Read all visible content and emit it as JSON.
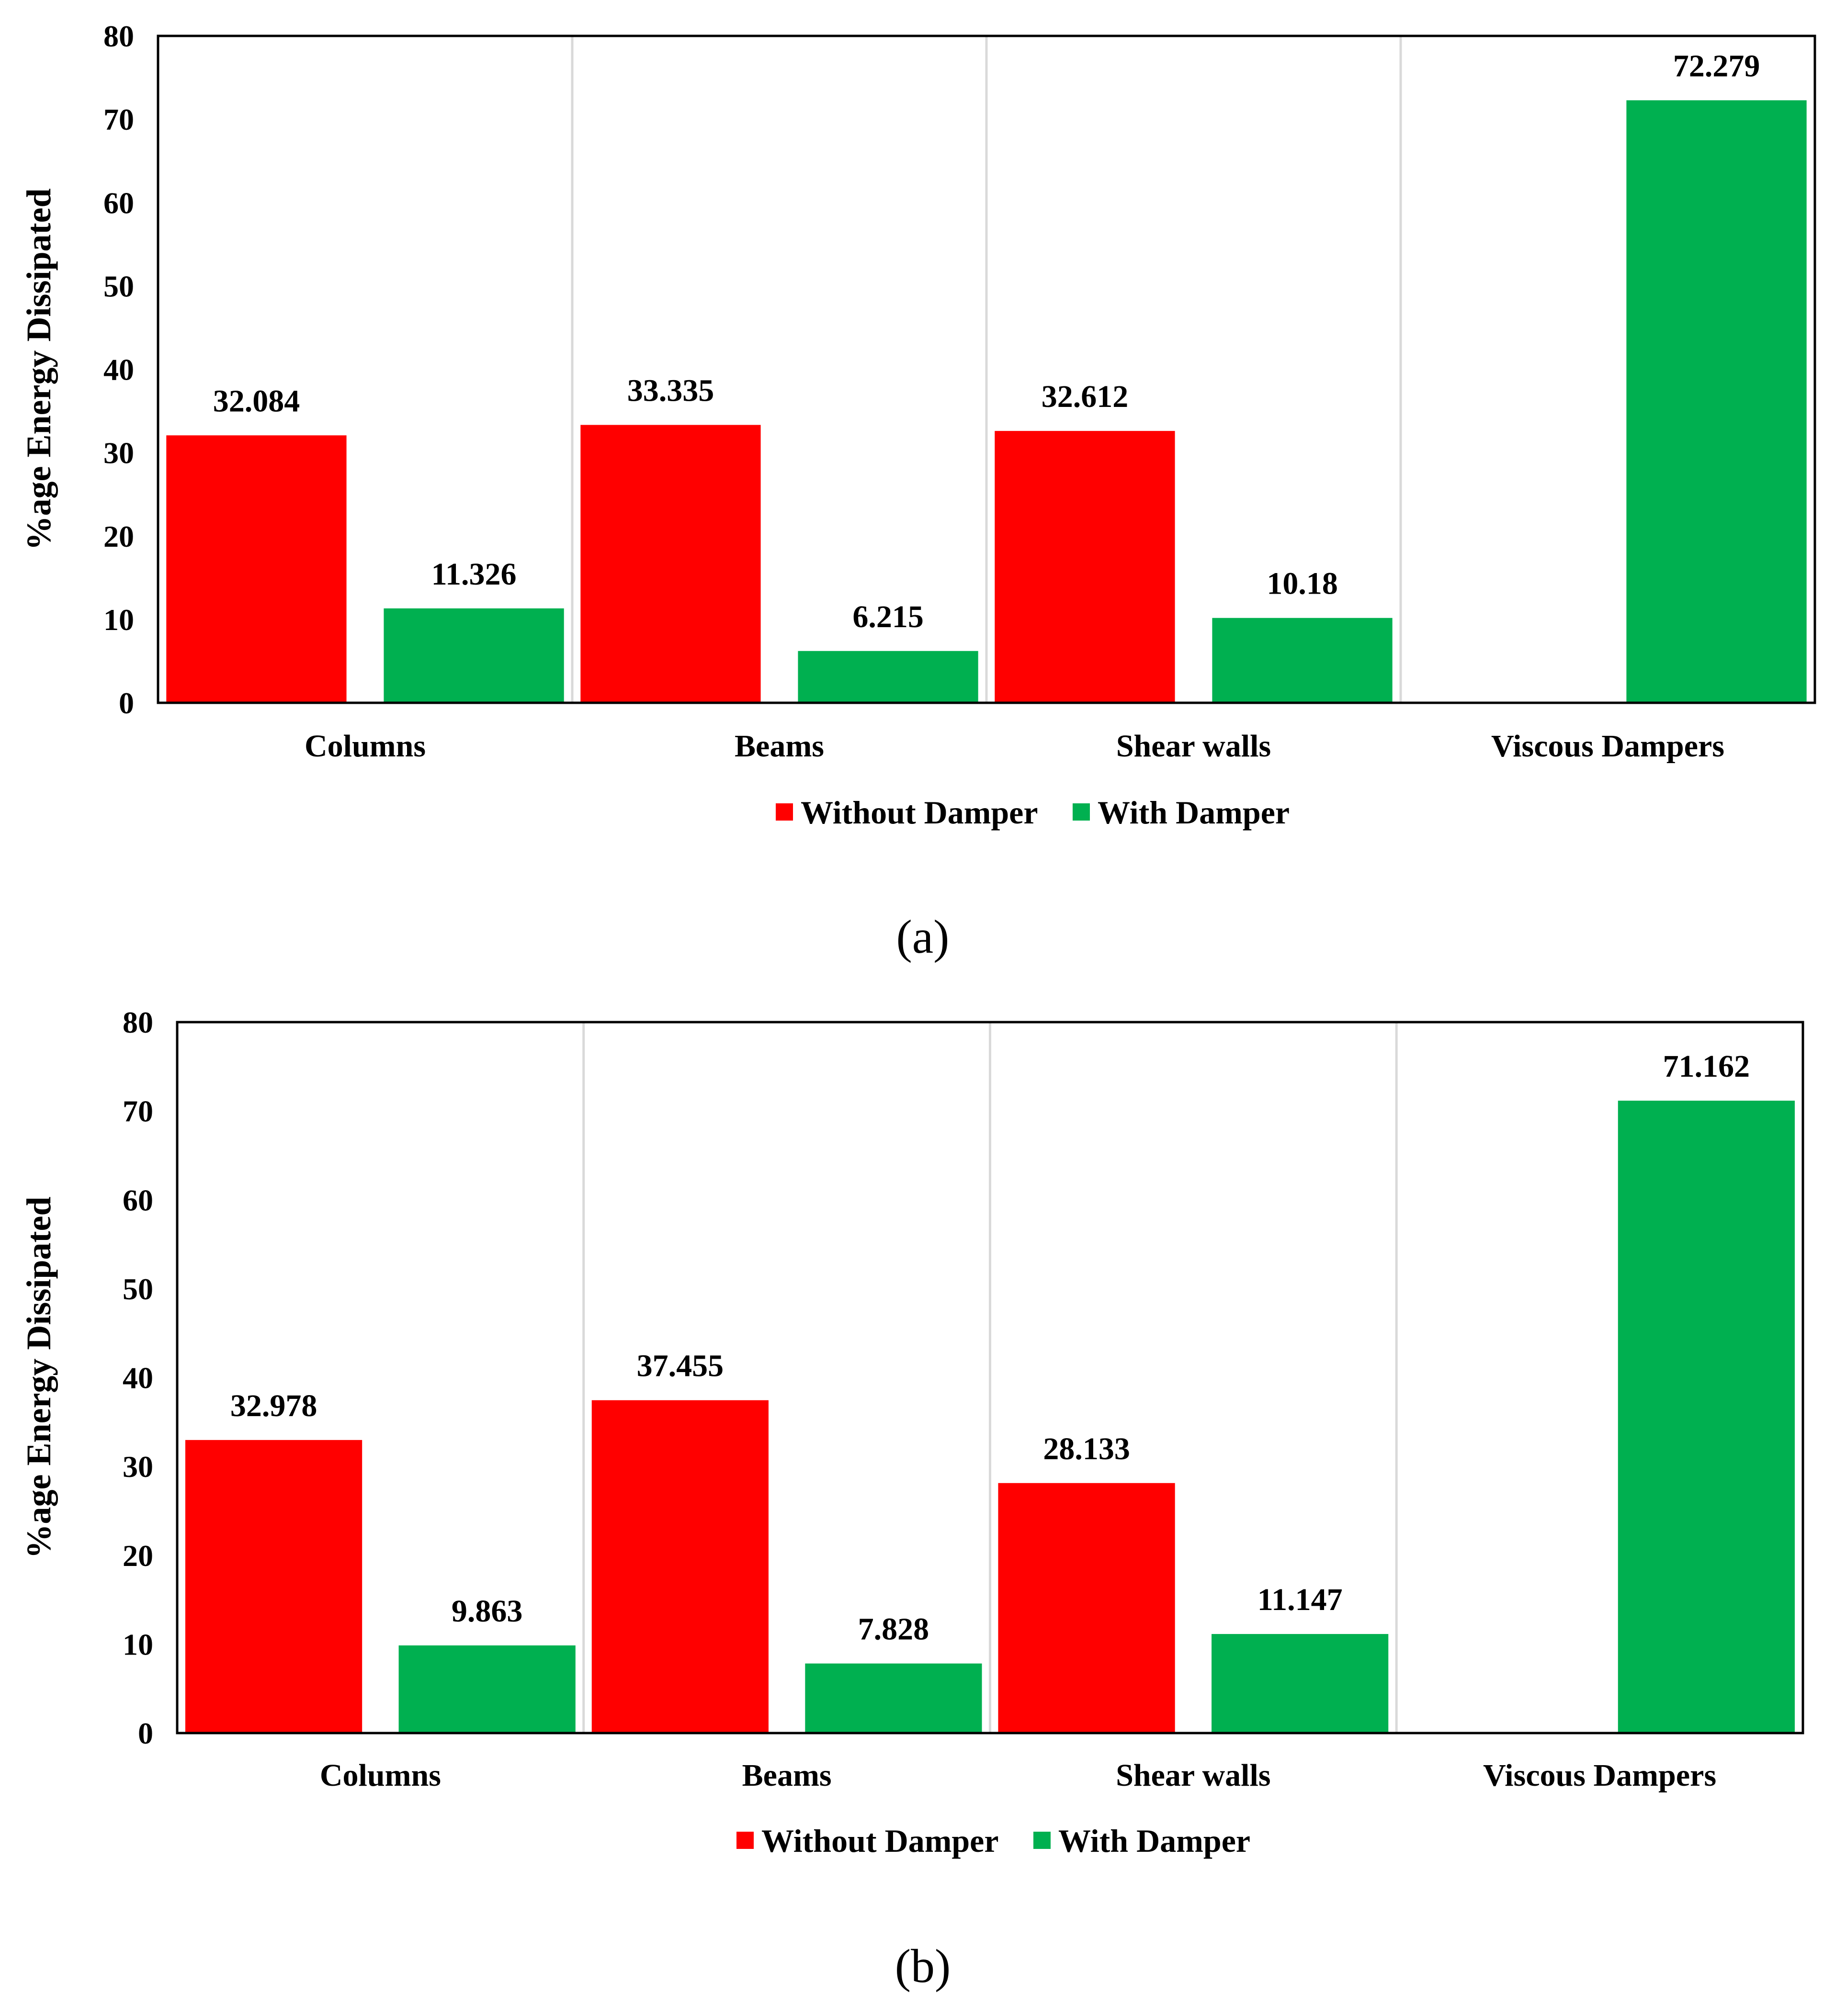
{
  "chart_data": [
    {
      "type": "bar",
      "panel_label": "(a)",
      "categories": [
        "Columns",
        "Beams",
        "Shear walls",
        "Viscous Dampers"
      ],
      "series": [
        {
          "name": "Without Damper",
          "color": "#ff0000",
          "values": [
            32.084,
            33.335,
            32.612,
            null
          ],
          "labels": [
            "32.084",
            "33.335",
            "32.612",
            ""
          ]
        },
        {
          "name": "With Damper",
          "color": "#00b050",
          "values": [
            11.326,
            6.215,
            10.18,
            72.279
          ],
          "labels": [
            "11.326",
            "6.215",
            "10.18",
            "72.279"
          ]
        }
      ],
      "ylabel": "%age Energy Dissipated",
      "xlabel": "",
      "ylim": [
        0,
        80
      ],
      "yticks": [
        "0",
        "10",
        "20",
        "30",
        "40",
        "50",
        "60",
        "70",
        "80"
      ],
      "legend_position": "bottom"
    },
    {
      "type": "bar",
      "panel_label": "(b)",
      "categories": [
        "Columns",
        "Beams",
        "Shear walls",
        "Viscous Dampers"
      ],
      "series": [
        {
          "name": "Without Damper",
          "color": "#ff0000",
          "values": [
            32.978,
            37.455,
            28.133,
            null
          ],
          "labels": [
            "32.978",
            "37.455",
            "28.133",
            ""
          ]
        },
        {
          "name": "With Damper",
          "color": "#00b050",
          "values": [
            9.863,
            7.828,
            11.147,
            71.162
          ],
          "labels": [
            "9.863",
            "7.828",
            "11.147",
            "71.162"
          ]
        }
      ],
      "ylabel": "%age Energy Dissipated",
      "xlabel": "",
      "ylim": [
        0,
        80
      ],
      "yticks": [
        "0",
        "10",
        "20",
        "30",
        "40",
        "50",
        "60",
        "70",
        "80"
      ],
      "legend_position": "bottom"
    }
  ]
}
